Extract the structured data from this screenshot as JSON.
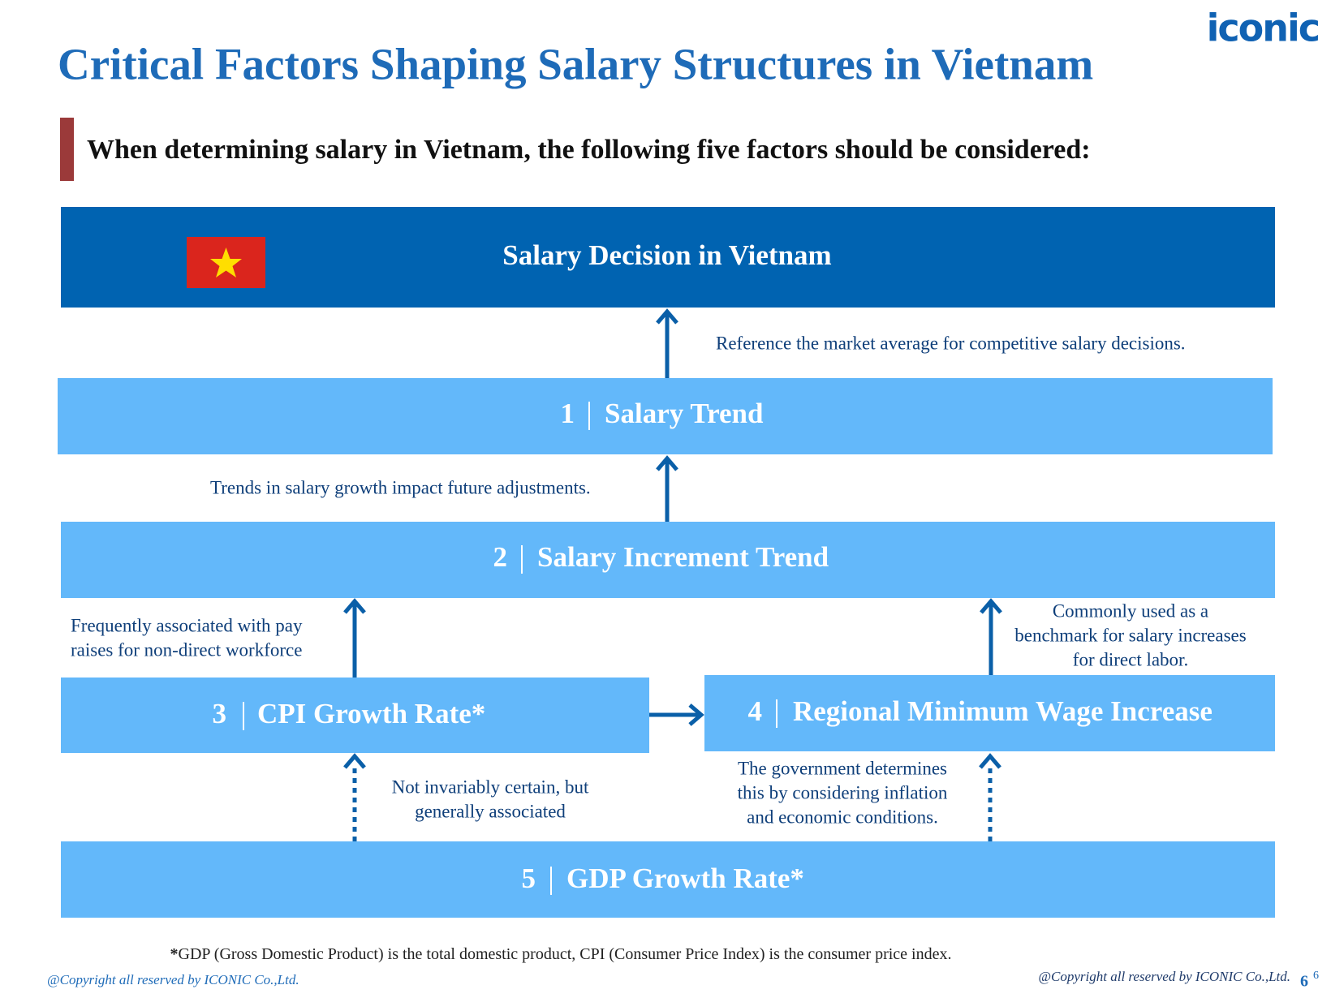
{
  "logo": "iconic",
  "title": "Critical Factors Shaping Salary Structures in Vietnam",
  "subtitle": "When determining salary in Vietnam, the following five factors should be considered:",
  "banner": "Salary Decision in Vietnam",
  "factors": [
    {
      "number": "1",
      "label": "Salary Trend"
    },
    {
      "number": "2",
      "label": "Salary Increment Trend"
    },
    {
      "number": "3",
      "label": "CPI Growth Rate*"
    },
    {
      "number": "4",
      "label": "Regional Minimum Wage Increase"
    },
    {
      "number": "5",
      "label": "GDP Growth Rate*"
    }
  ],
  "annotations": [
    {
      "lines": [
        "Reference the market average for competitive salary decisions."
      ]
    },
    {
      "lines": [
        "Trends in salary growth impact future adjustments."
      ]
    },
    {
      "lines": [
        "Frequently associated with pay",
        "raises for non-direct workforce"
      ]
    },
    {
      "lines": [
        "Commonly used as a",
        "benchmark for salary increases",
        "for direct labor."
      ]
    },
    {
      "lines": [
        "Not invariably certain, but",
        "generally associated"
      ]
    },
    {
      "lines": [
        "The government determines",
        "this by considering inflation",
        "and economic conditions."
      ]
    }
  ],
  "footnote": {
    "marker": "*",
    "text": "GDP (Gross Domestic Product) is the total domestic product, CPI (Consumer Price Index) is the consumer price index."
  },
  "copyright_left": "@Copyright all reserved by ICONIC Co.,Ltd.",
  "copyright_right": "@Copyright all reserved by ICONIC Co.,Ltd.",
  "page_number": "6",
  "page_number_small": "6"
}
